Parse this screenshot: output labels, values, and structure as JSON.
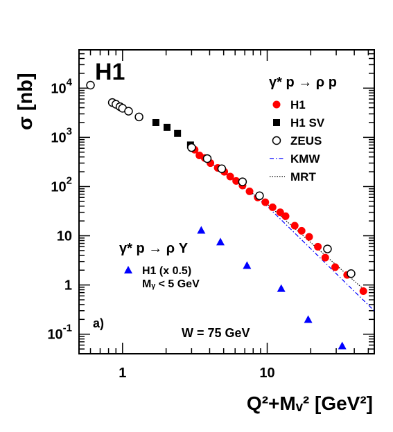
{
  "chart_data": {
    "type": "scatter",
    "title": "",
    "xlabel": "Q²+Mᵥ² [GeV²]",
    "ylabel": "σ [nb]",
    "x_scale": "log",
    "y_scale": "log",
    "xlim": [
      0.5,
      55
    ],
    "ylim": [
      0.04,
      60000
    ],
    "x_tick_labels": [
      "1",
      "10"
    ],
    "y_tick_labels": [
      "10⁻¹",
      "1",
      "10",
      "10²",
      "10³",
      "10⁴"
    ],
    "grid": false,
    "legend_position": "top-right",
    "experiment_label": "H1",
    "panel_label": "a)",
    "energy_label": "W = 75 GeV",
    "elastic_legend_title": "γ* p → ρ p",
    "proton_dissociation_title": "γ* p → ρ Y",
    "proton_dissociation_note": "Mᵧ < 5 GeV",
    "series": [
      {
        "name": "H1",
        "color": "#ff0000",
        "marker": "circle-filled",
        "points": [
          [
            3.15,
            560
          ],
          [
            3.4,
            430
          ],
          [
            3.7,
            380
          ],
          [
            4.05,
            300
          ],
          [
            4.55,
            240
          ],
          [
            5.05,
            200
          ],
          [
            5.55,
            160
          ],
          [
            6.1,
            130
          ],
          [
            6.75,
            105
          ],
          [
            7.55,
            80
          ],
          [
            8.6,
            60
          ],
          [
            9.7,
            48
          ],
          [
            10.9,
            38
          ],
          [
            12.3,
            30
          ],
          [
            13.4,
            25
          ],
          [
            15.5,
            16
          ],
          [
            17.3,
            12.6
          ],
          [
            19.5,
            9.5
          ],
          [
            22.4,
            6
          ],
          [
            25.2,
            3.6
          ],
          [
            29.5,
            2.3
          ],
          [
            35.7,
            1.6
          ],
          [
            46.2,
            0.75
          ]
        ]
      },
      {
        "name": "H1 SV",
        "color": "#000000",
        "marker": "square-filled",
        "points": [
          [
            1.7,
            2000
          ],
          [
            2.03,
            1600
          ],
          [
            2.4,
            1200
          ],
          [
            2.95,
            700
          ]
        ]
      },
      {
        "name": "ZEUS",
        "color": "#000000",
        "marker": "circle-open",
        "points": [
          [
            0.6,
            11500
          ],
          [
            0.85,
            5100
          ],
          [
            0.9,
            4700
          ],
          [
            0.96,
            4200
          ],
          [
            1.0,
            3900
          ],
          [
            1.1,
            3400
          ],
          [
            1.3,
            2600
          ],
          [
            3.0,
            620
          ],
          [
            3.85,
            370
          ],
          [
            4.85,
            230
          ],
          [
            6.75,
            125
          ],
          [
            8.85,
            65
          ],
          [
            26.1,
            5.4
          ],
          [
            38.0,
            1.7
          ]
        ]
      },
      {
        "name": "H1 (x 0.5)",
        "color": "#0000ff",
        "marker": "triangle-filled",
        "points": [
          [
            3.5,
            13
          ],
          [
            4.75,
            7.5
          ],
          [
            7.25,
            2.5
          ],
          [
            12.5,
            0.85
          ],
          [
            19.2,
            0.2
          ],
          [
            33.0,
            0.058
          ]
        ]
      },
      {
        "name": "KMW",
        "color": "#0000ff",
        "marker": "dash-dot-line",
        "points": [
          [
            2.8,
            720
          ],
          [
            10.0,
            40
          ],
          [
            57.0,
            0.27
          ]
        ]
      },
      {
        "name": "MRT",
        "color": "#000000",
        "marker": "dotted-line",
        "points": [
          [
            3.3,
            470
          ],
          [
            10.0,
            44
          ],
          [
            48.0,
            0.75
          ]
        ]
      }
    ]
  }
}
